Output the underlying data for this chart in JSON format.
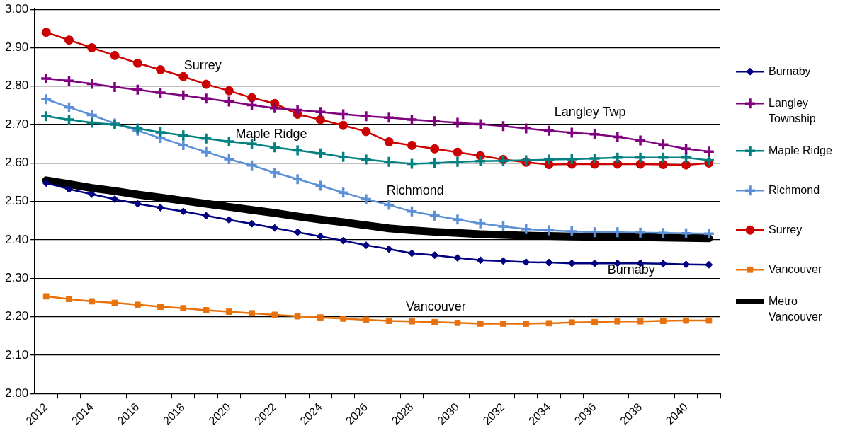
{
  "chart_data": {
    "type": "line",
    "categories": [
      "2012",
      null,
      "2014",
      null,
      "2016",
      null,
      "2018",
      null,
      "2020",
      null,
      "2022",
      null,
      "2024",
      null,
      "2026",
      null,
      "2028",
      null,
      "2030",
      null,
      "2032",
      null,
      "2034",
      null,
      "2036",
      null,
      "2038",
      null,
      "2040",
      null
    ],
    "ylim": [
      2.0,
      3.0
    ],
    "yticks": [
      {
        "value": 2.0,
        "label": "2.00"
      },
      {
        "value": 2.1,
        "label": "2.10"
      },
      {
        "value": 2.2,
        "label": "2.20"
      },
      {
        "value": 2.3,
        "label": "2.30"
      },
      {
        "value": 2.4,
        "label": "2.40"
      },
      {
        "value": 2.5,
        "label": "2.50"
      },
      {
        "value": 2.6,
        "label": "2.60"
      },
      {
        "value": 2.7,
        "label": "2.70"
      },
      {
        "value": 2.8,
        "label": "2.80"
      },
      {
        "value": 2.9,
        "label": "2.90"
      },
      {
        "value": 3.0,
        "label": "3.00"
      }
    ],
    "grid": "y",
    "legend": "right",
    "series": [
      {
        "name": "Burnaby",
        "color": "#000080",
        "marker": "diamond",
        "values": [
          2.548,
          2.532,
          2.519,
          2.506,
          2.494,
          2.484,
          2.474,
          2.463,
          2.452,
          2.442,
          2.431,
          2.42,
          2.409,
          2.398,
          2.386,
          2.376,
          2.365,
          2.36,
          2.353,
          2.347,
          2.345,
          2.342,
          2.341,
          2.339,
          2.339,
          2.339,
          2.339,
          2.338,
          2.336,
          2.335
        ]
      },
      {
        "name": "Langley Township",
        "color": "#800080",
        "marker": "cross",
        "values": [
          2.82,
          2.814,
          2.806,
          2.798,
          2.791,
          2.783,
          2.776,
          2.768,
          2.76,
          2.751,
          2.743,
          2.738,
          2.733,
          2.727,
          2.722,
          2.718,
          2.713,
          2.709,
          2.705,
          2.701,
          2.696,
          2.69,
          2.684,
          2.679,
          2.675,
          2.668,
          2.659,
          2.648,
          2.637,
          2.63
        ]
      },
      {
        "name": "Maple Ridge",
        "color": "#008080",
        "marker": "cross",
        "values": [
          2.722,
          2.713,
          2.705,
          2.7,
          2.69,
          2.68,
          2.672,
          2.664,
          2.656,
          2.65,
          2.641,
          2.633,
          2.625,
          2.616,
          2.609,
          2.603,
          2.598,
          2.6,
          2.603,
          2.605,
          2.606,
          2.607,
          2.609,
          2.61,
          2.612,
          2.614,
          2.614,
          2.614,
          2.614,
          2.607
        ]
      },
      {
        "name": "Richmond",
        "color": "#5b8fd6",
        "marker": "cross",
        "values": [
          2.766,
          2.745,
          2.725,
          2.703,
          2.684,
          2.665,
          2.647,
          2.629,
          2.61,
          2.594,
          2.575,
          2.558,
          2.541,
          2.523,
          2.506,
          2.491,
          2.474,
          2.463,
          2.453,
          2.443,
          2.435,
          2.428,
          2.425,
          2.422,
          2.42,
          2.42,
          2.419,
          2.418,
          2.417,
          2.416
        ]
      },
      {
        "name": "Surrey",
        "color": "#cc0000",
        "marker": "circle",
        "values": [
          2.94,
          2.92,
          2.9,
          2.88,
          2.86,
          2.843,
          2.825,
          2.805,
          2.788,
          2.77,
          2.755,
          2.727,
          2.713,
          2.698,
          2.682,
          2.655,
          2.646,
          2.637,
          2.628,
          2.619,
          2.609,
          2.602,
          2.596,
          2.597,
          2.597,
          2.597,
          2.597,
          2.596,
          2.595,
          2.6
        ]
      },
      {
        "name": "Vancouver",
        "color": "#e8710a",
        "marker": "square",
        "values": [
          2.253,
          2.246,
          2.24,
          2.236,
          2.231,
          2.226,
          2.222,
          2.217,
          2.213,
          2.209,
          2.205,
          2.201,
          2.198,
          2.195,
          2.192,
          2.189,
          2.188,
          2.186,
          2.184,
          2.182,
          2.182,
          2.182,
          2.183,
          2.185,
          2.186,
          2.188,
          2.188,
          2.189,
          2.19,
          2.19
        ]
      },
      {
        "name": "Metro Vancouver",
        "color": "#000000",
        "marker": "none",
        "values": [
          2.555,
          2.545,
          2.535,
          2.527,
          2.518,
          2.51,
          2.502,
          2.494,
          2.486,
          2.478,
          2.47,
          2.461,
          2.453,
          2.446,
          2.438,
          2.43,
          2.425,
          2.421,
          2.418,
          2.415,
          2.413,
          2.411,
          2.41,
          2.409,
          2.408,
          2.408,
          2.407,
          2.406,
          2.405,
          2.404
        ]
      }
    ],
    "annotations": [
      "Surrey",
      "Langley Twp",
      "Maple Ridge",
      "Richmond",
      "Burnaby",
      "Vancouver"
    ]
  }
}
